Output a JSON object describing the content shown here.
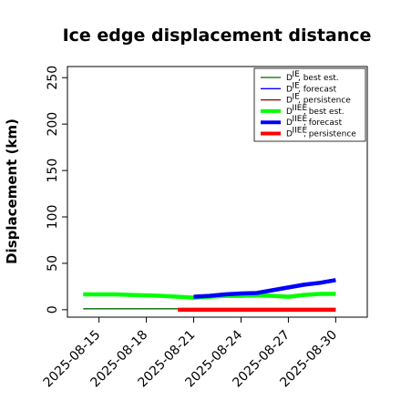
{
  "chart_data": {
    "type": "line",
    "title": "Ice edge displacement distance",
    "ylabel": "Displacement (km)",
    "xlabel": "",
    "xlim": [
      "2025-08-13",
      "2025-09-01"
    ],
    "ylim": [
      -8,
      262
    ],
    "yticks": [
      0,
      50,
      100,
      150,
      200,
      250
    ],
    "xticks": [
      "2025-08-15",
      "2025-08-18",
      "2025-08-21",
      "2025-08-24",
      "2025-08-27",
      "2025-08-30"
    ],
    "highlighted_xtick": "2025-08-21",
    "highlight_color": "#228b22",
    "grid": false,
    "legend_position": "top-right",
    "legend": [
      {
        "sup": "IE",
        "text": "best est."
      },
      {
        "sup": "IE",
        "text": "forecast"
      },
      {
        "sup": "IE",
        "text": "persistence"
      },
      {
        "sup": "IIEE",
        "text": "best est."
      },
      {
        "sup": "IIEE",
        "text": "forecast"
      },
      {
        "sup": "IIEE",
        "text": "persistence"
      }
    ],
    "legend_symbol": "D",
    "series": [
      {
        "color": "#006400",
        "style": "thin",
        "points": [
          [
            "2025-08-14",
            1
          ],
          [
            "2025-08-15",
            1
          ],
          [
            "2025-08-16",
            1
          ],
          [
            "2025-08-17",
            1
          ],
          [
            "2025-08-18",
            1
          ],
          [
            "2025-08-19",
            1
          ],
          [
            "2025-08-20",
            1
          ]
        ]
      },
      {
        "color": "#0000ff",
        "style": "thin",
        "points": [
          [
            "2025-08-21",
            14
          ],
          [
            "2025-08-22",
            15
          ],
          [
            "2025-08-23",
            17
          ],
          [
            "2025-08-24",
            18
          ],
          [
            "2025-08-25",
            18
          ],
          [
            "2025-08-26",
            21
          ],
          [
            "2025-08-27",
            24
          ],
          [
            "2025-08-28",
            27
          ],
          [
            "2025-08-29",
            29
          ],
          [
            "2025-08-30",
            32
          ]
        ]
      },
      {
        "color": "#8b0000",
        "style": "thin",
        "points": [
          [
            "2025-08-20",
            1
          ],
          [
            "2025-08-21",
            1
          ],
          [
            "2025-08-22",
            1
          ],
          [
            "2025-08-23",
            1
          ],
          [
            "2025-08-24",
            1
          ],
          [
            "2025-08-25",
            1
          ],
          [
            "2025-08-26",
            1
          ],
          [
            "2025-08-27",
            1
          ],
          [
            "2025-08-28",
            1
          ],
          [
            "2025-08-29",
            1
          ],
          [
            "2025-08-30",
            1
          ]
        ]
      },
      {
        "color": "#00ff00",
        "style": "thick",
        "points": [
          [
            "2025-08-14",
            16.5
          ],
          [
            "2025-08-15",
            16.5
          ],
          [
            "2025-08-16",
            16.5
          ],
          [
            "2025-08-17",
            16
          ],
          [
            "2025-08-18",
            15.5
          ],
          [
            "2025-08-19",
            15
          ],
          [
            "2025-08-20",
            14
          ],
          [
            "2025-08-21",
            13
          ],
          [
            "2025-08-22",
            14
          ],
          [
            "2025-08-23",
            15
          ],
          [
            "2025-08-24",
            15
          ],
          [
            "2025-08-25",
            15.5
          ],
          [
            "2025-08-26",
            15
          ],
          [
            "2025-08-27",
            14
          ],
          [
            "2025-08-28",
            16
          ],
          [
            "2025-08-29",
            17
          ],
          [
            "2025-08-30",
            17
          ]
        ]
      },
      {
        "color": "#0000ff",
        "style": "thick",
        "points": [
          [
            "2025-08-21",
            14
          ],
          [
            "2025-08-22",
            15
          ],
          [
            "2025-08-23",
            16.5
          ],
          [
            "2025-08-24",
            17.5
          ],
          [
            "2025-08-25",
            18
          ],
          [
            "2025-08-27",
            24
          ],
          [
            "2025-08-28",
            27
          ],
          [
            "2025-08-29",
            29
          ],
          [
            "2025-08-30",
            32
          ]
        ]
      },
      {
        "color": "#ff0000",
        "style": "thick",
        "points": [
          [
            "2025-08-20",
            0
          ],
          [
            "2025-08-21",
            0
          ],
          [
            "2025-08-22",
            0
          ],
          [
            "2025-08-23",
            0
          ],
          [
            "2025-08-24",
            0
          ],
          [
            "2025-08-25",
            0
          ],
          [
            "2025-08-27",
            0
          ],
          [
            "2025-08-28",
            0
          ],
          [
            "2025-08-29",
            0
          ],
          [
            "2025-08-30",
            0
          ]
        ]
      }
    ]
  }
}
